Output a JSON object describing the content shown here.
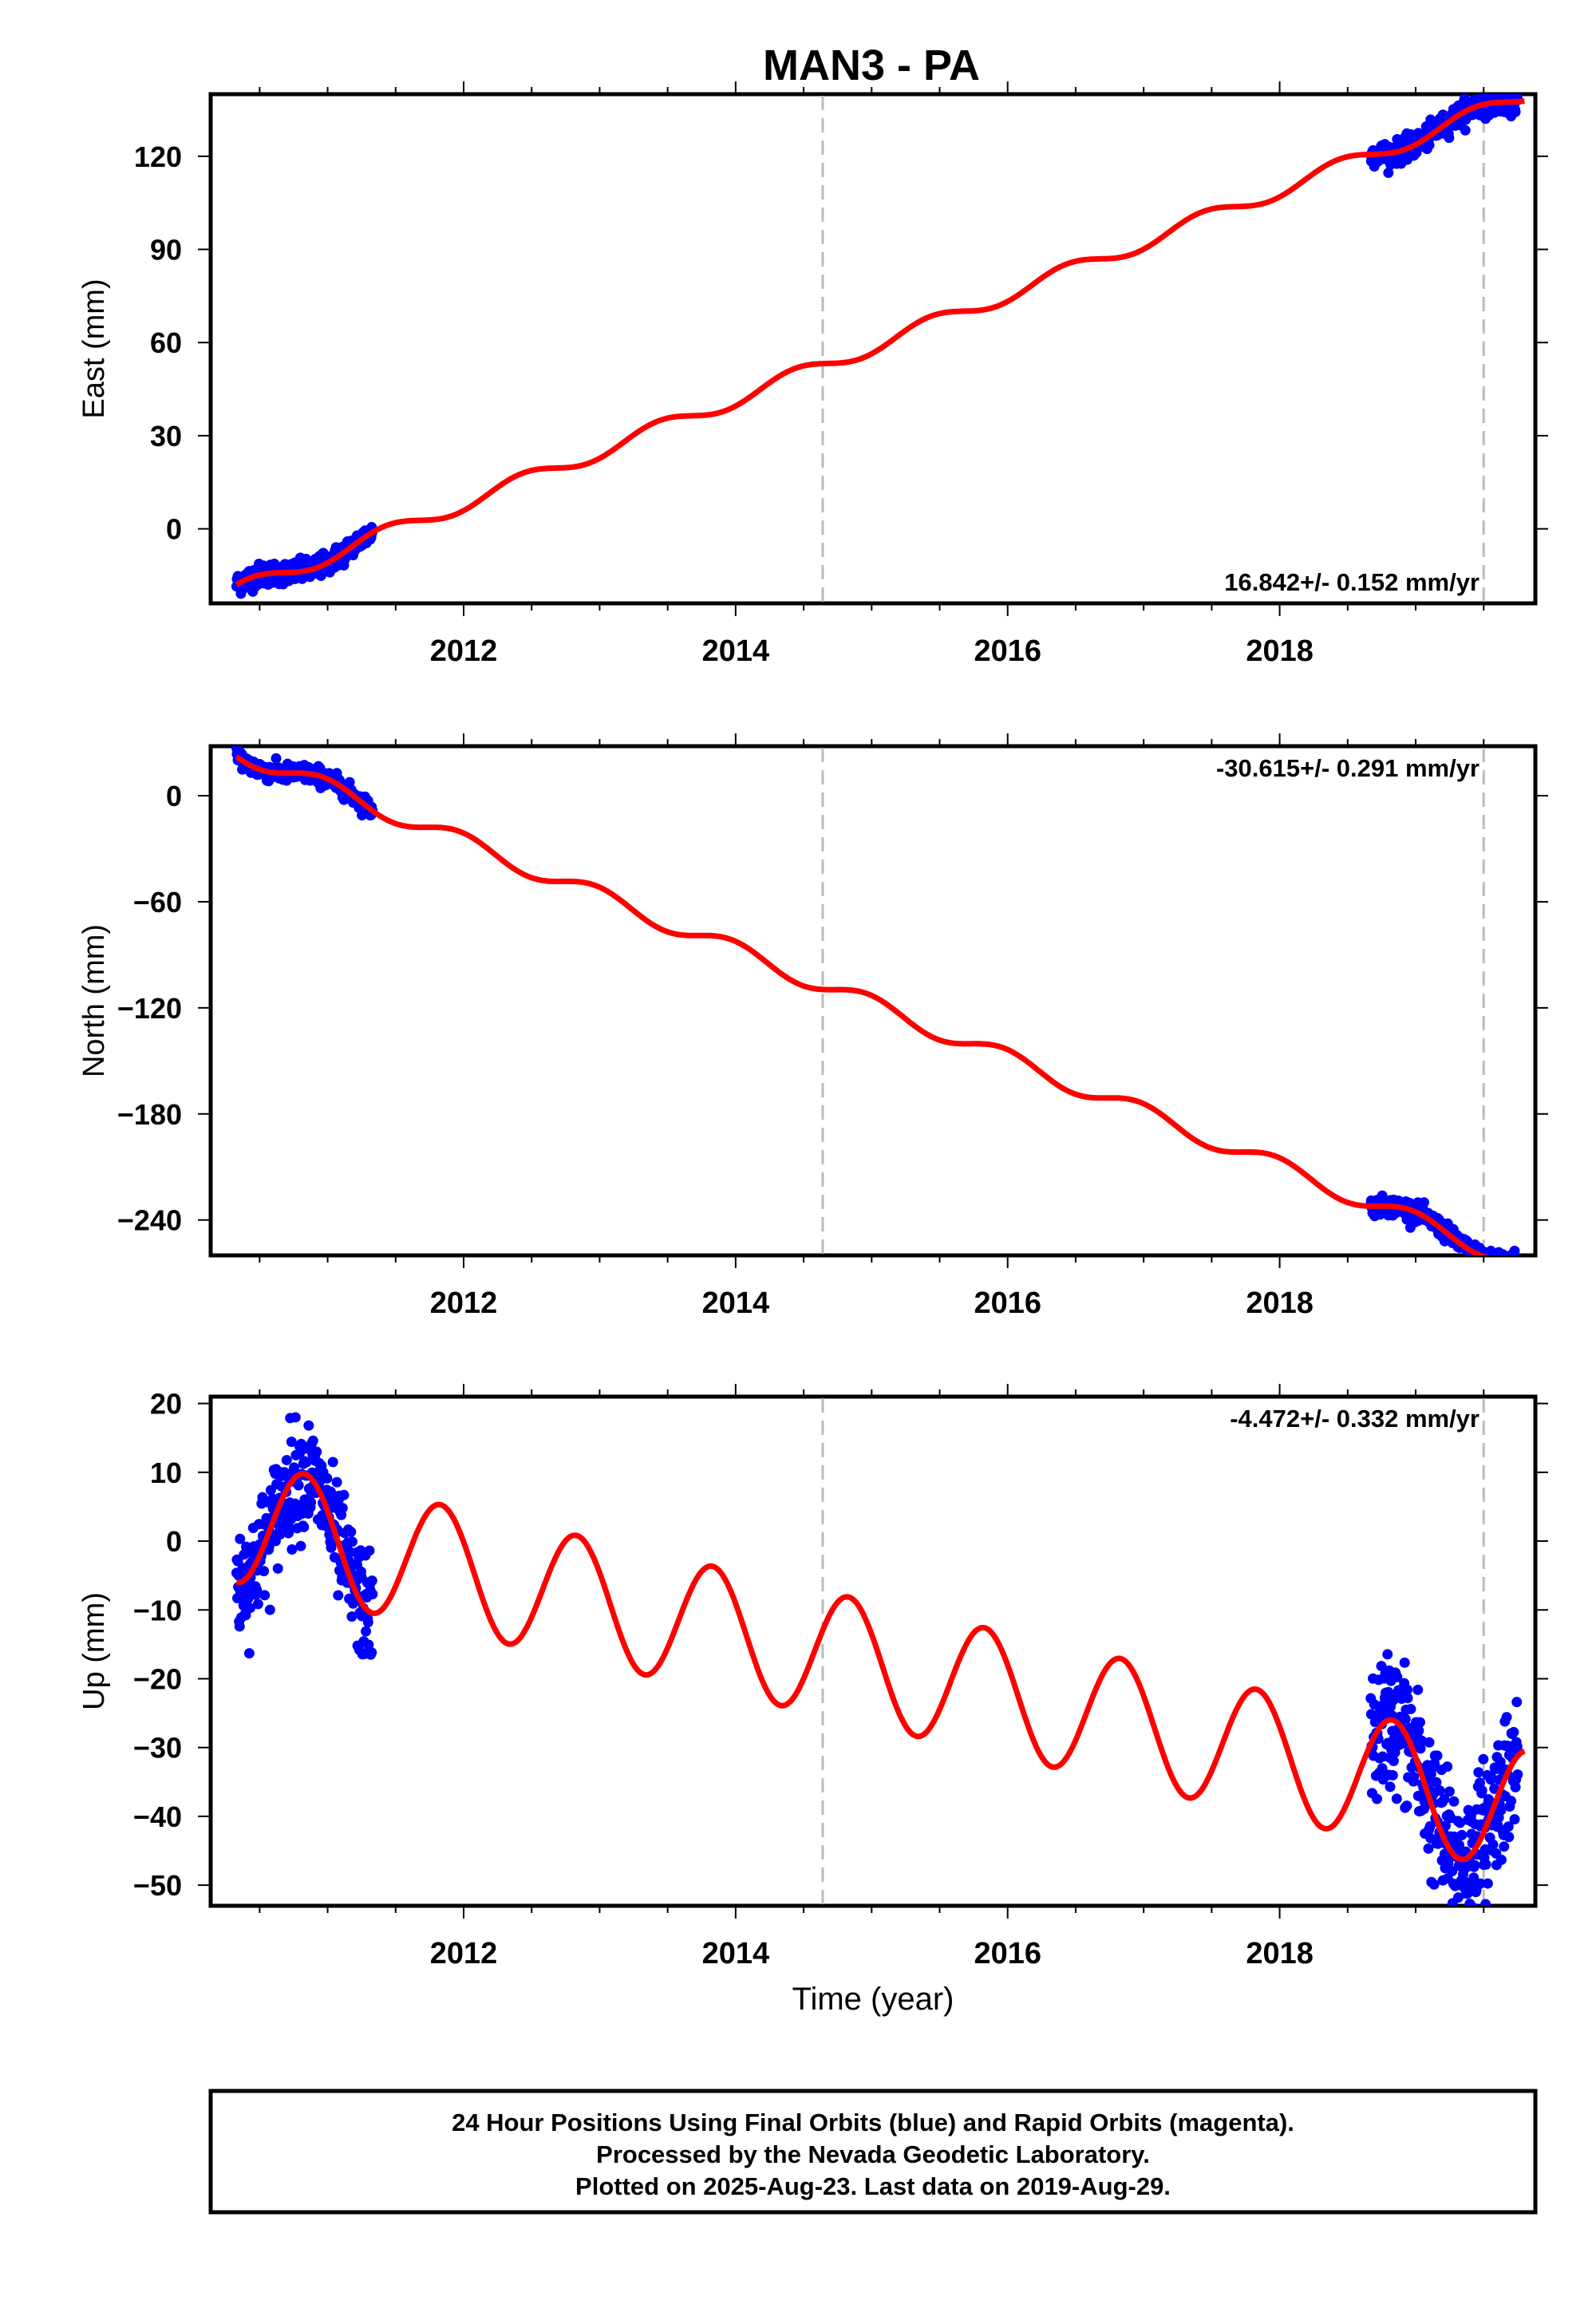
{
  "figure": {
    "title": "MAN3 - PA",
    "footer_lines": [
      "24 Hour Positions Using Final Orbits (blue) and Rapid Orbits (magenta).",
      "Processed by the Nevada Geodetic Laboratory.",
      "Plotted on 2025-Aug-23. Last data on 2019-Aug-29."
    ],
    "colors": {
      "data": "#0000ff",
      "model": "#ff0000",
      "breaks": "#bbbbbb"
    }
  },
  "chart_data": [
    {
      "type": "scatter",
      "ylabel": "East (mm)",
      "xlabel": "",
      "xlim": [
        2010.14,
        2019.88
      ],
      "ylim": [
        -24,
        140
      ],
      "x_ticks": [
        2012,
        2014,
        2016,
        2018
      ],
      "x_tick_labels": [
        "2012",
        "2014",
        "2016",
        "2018"
      ],
      "y_ticks": [
        0,
        30,
        60,
        90,
        120
      ],
      "y_tick_labels": [
        "0",
        "30",
        "60",
        "90",
        "120"
      ],
      "rate_label": "16.842+/- 0.152 mm/yr",
      "rate_position": "bottom-right",
      "breaks": [
        2014.64,
        2019.5
      ],
      "model": {
        "start_year": 2010.33,
        "end_year": 2019.8,
        "value_at_start": -20,
        "rate": 16.842,
        "annual_amp": 2.5,
        "annual_phase": 0.15,
        "offset_after_2014.64": 0
      },
      "data_segments": [
        {
          "start": 2010.33,
          "end": 2011.33,
          "scatter": 1.8
        },
        {
          "start": 2018.67,
          "end": 2019.75,
          "scatter": 1.8
        }
      ]
    },
    {
      "type": "scatter",
      "ylabel": "North (mm)",
      "xlabel": "",
      "xlim": [
        2010.14,
        2019.88
      ],
      "ylim": [
        -260,
        28
      ],
      "x_ticks": [
        2012,
        2014,
        2016,
        2018
      ],
      "x_tick_labels": [
        "2012",
        "2014",
        "2016",
        "2018"
      ],
      "y_ticks": [
        0,
        -60,
        -120,
        -180,
        -240
      ],
      "y_tick_labels": [
        "0",
        "−60",
        "−120",
        "−180",
        "−240"
      ],
      "rate_label": "-30.615+/- 0.291 mm/yr",
      "rate_position": "top-right",
      "breaks": [
        2014.64,
        2019.5
      ],
      "model": {
        "start_year": 2010.33,
        "end_year": 2019.8,
        "value_at_start": 25,
        "rate": -30.615,
        "annual_amp": 5,
        "annual_phase": 0.6,
        "offset_after_2014.64": 0
      },
      "data_segments": [
        {
          "start": 2010.33,
          "end": 2011.33,
          "scatter": 2.5
        },
        {
          "start": 2018.67,
          "end": 2019.75,
          "scatter": 2.5
        }
      ]
    },
    {
      "type": "scatter",
      "ylabel": "Up (mm)",
      "xlabel": "Time (year)",
      "xlim": [
        2010.14,
        2019.88
      ],
      "ylim": [
        -53,
        21
      ],
      "x_ticks": [
        2012,
        2014,
        2016,
        2018
      ],
      "x_tick_labels": [
        "2012",
        "2014",
        "2016",
        "2018"
      ],
      "y_ticks": [
        20,
        10,
        0,
        -10,
        -20,
        -30,
        -40,
        -50
      ],
      "y_tick_labels": [
        "20",
        "10",
        "0",
        "−10",
        "−20",
        "−30",
        "−40",
        "−50"
      ],
      "rate_label": "-4.472+/- 0.332 mm/yr",
      "rate_position": "top-right",
      "breaks": [
        2014.64,
        2019.5
      ],
      "model": {
        "start_year": 2010.33,
        "end_year": 2019.8,
        "value_at_start": 3,
        "rate": -4.472,
        "annual_amp": 9,
        "annual_phase": 0.75,
        "offset_after_2014.64": 0
      },
      "data_segments": [
        {
          "start": 2010.33,
          "end": 2011.33,
          "scatter": 4
        },
        {
          "start": 2018.67,
          "end": 2019.75,
          "scatter": 5
        }
      ]
    }
  ]
}
